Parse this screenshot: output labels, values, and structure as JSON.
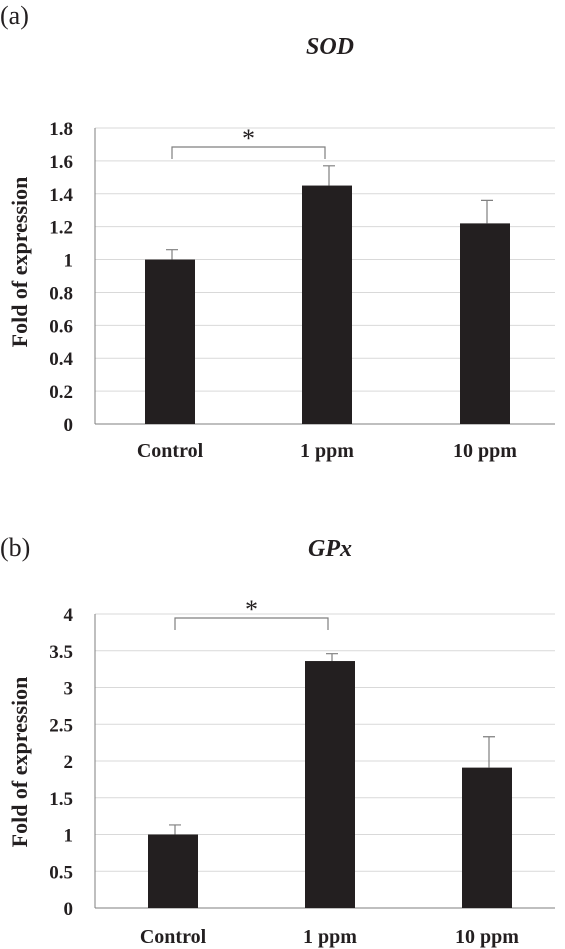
{
  "chart_data": [
    {
      "panel": "(a)",
      "type": "bar",
      "title": "SOD",
      "xlabel": "",
      "ylabel": "Fold of expression",
      "categories": [
        "Control",
        "1 ppm",
        "10 ppm"
      ],
      "values": [
        1.0,
        1.45,
        1.22
      ],
      "errors": [
        0.06,
        0.12,
        0.14
      ],
      "ylim": [
        0,
        1.8
      ],
      "yticks": [
        "0",
        "0.2",
        "0.4",
        "0.6",
        "0.8",
        "1",
        "1.2",
        "1.4",
        "1.6",
        "1.8"
      ],
      "ytick_values": [
        0,
        0.2,
        0.4,
        0.6,
        0.8,
        1,
        1.2,
        1.4,
        1.6,
        1.8
      ],
      "grid": true,
      "bar_color": "#231f20",
      "significance": {
        "from": 0,
        "to": 1,
        "label": "*"
      }
    },
    {
      "panel": "(b)",
      "type": "bar",
      "title": "GPx",
      "xlabel": "",
      "ylabel": "Fold of expression",
      "categories": [
        "Control",
        "1 ppm",
        "10 ppm"
      ],
      "values": [
        1.0,
        3.36,
        1.91
      ],
      "errors": [
        0.13,
        0.1,
        0.42
      ],
      "ylim": [
        0,
        4
      ],
      "yticks": [
        "0",
        "0.5",
        "1",
        "1.5",
        "2",
        "2.5",
        "3",
        "3.5",
        "4"
      ],
      "ytick_values": [
        0,
        0.5,
        1,
        1.5,
        2,
        2.5,
        3,
        3.5,
        4
      ],
      "grid": true,
      "bar_color": "#231f20",
      "significance": {
        "from": 0,
        "to": 1,
        "label": "*"
      }
    }
  ]
}
